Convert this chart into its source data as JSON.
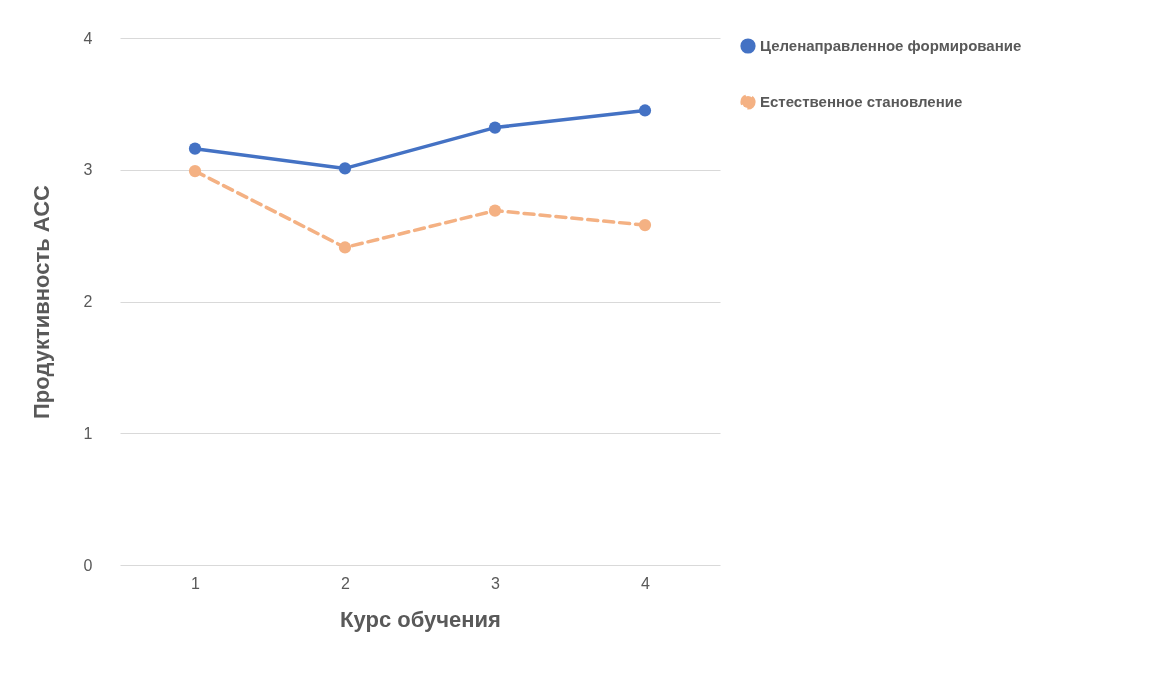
{
  "chart_data": {
    "type": "line",
    "xlabel": "Курс обучения",
    "ylabel": "Продуктивность АСС",
    "categories": [
      "1",
      "2",
      "3",
      "4"
    ],
    "series": [
      {
        "name": "Целенаправленное формирование",
        "color": "#4472c4",
        "line_style": "solid",
        "values": [
          3.16,
          3.01,
          3.32,
          3.45
        ]
      },
      {
        "name": "Естественное становление",
        "color": "#f4b183",
        "line_style": "dashed",
        "values": [
          2.99,
          2.41,
          2.69,
          2.58
        ]
      }
    ],
    "ylim": [
      0,
      4
    ],
    "yticks": [
      0,
      1,
      2,
      3,
      4
    ],
    "grid": "y",
    "legend": "right",
    "marker": "circle"
  }
}
